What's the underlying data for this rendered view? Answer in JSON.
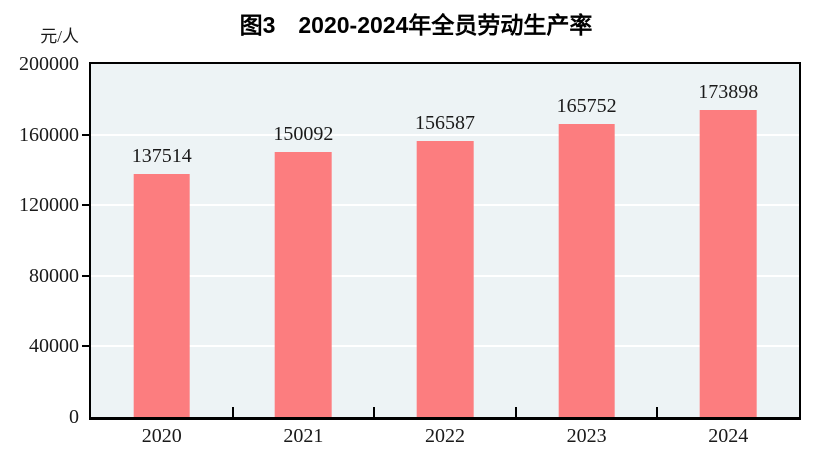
{
  "figure": {
    "title": "图3　2020-2024年全员劳动生产率",
    "y_unit_label": "元/人"
  },
  "chart_data": {
    "type": "bar",
    "title": "图3　2020-2024年全员劳动生产率",
    "ylabel": "元/人",
    "xlabel": "",
    "categories": [
      "2020",
      "2021",
      "2022",
      "2023",
      "2024"
    ],
    "values": [
      137514,
      150092,
      156587,
      165752,
      173898
    ],
    "value_labels": [
      "137514",
      "150092",
      "156587",
      "165752",
      "173898"
    ],
    "ylim": [
      0,
      200000
    ],
    "ytick_interval": 40000,
    "ytick_labels": [
      "0",
      "40000",
      "80000",
      "120000",
      "160000",
      "200000"
    ],
    "grid": true,
    "legend": false,
    "layout": {
      "gridlines": "horizontal-white",
      "y_ticks": "outside-left",
      "x_ticks": "inside-category-boundaries",
      "bar_gap_ratio": 0.4
    },
    "colors": {
      "bar": "#fc7d7f",
      "plot_background": "#edf3f5",
      "gridline": "#ffffff",
      "axis": "#000000",
      "text": "#1a1a1a",
      "background": "#ffffff"
    }
  }
}
